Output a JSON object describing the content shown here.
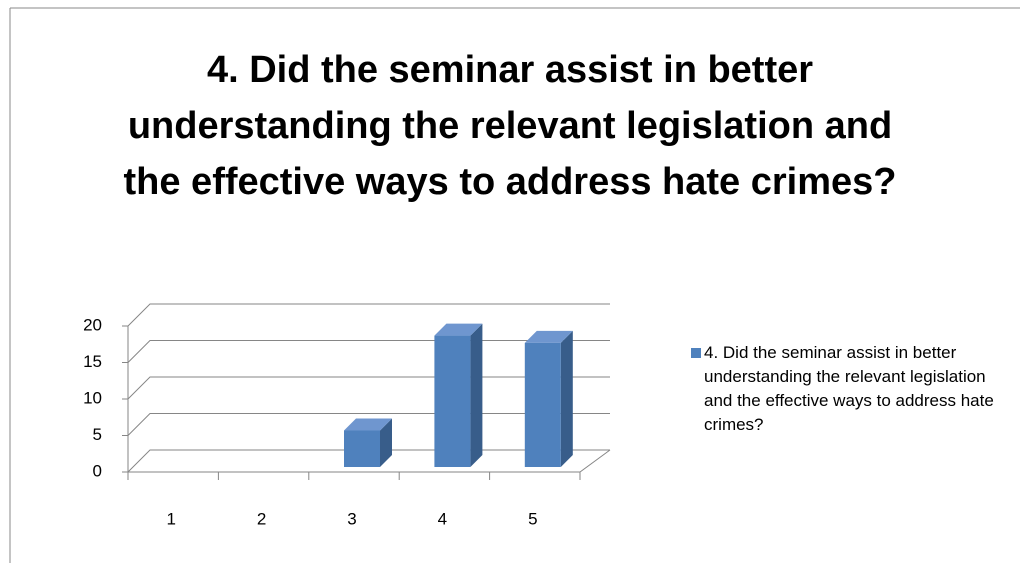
{
  "chart_data": {
    "type": "bar3d",
    "title": "4. Did the seminar assist in better understanding the relevant legislation and the effective ways to address hate crimes?",
    "categories": [
      "1",
      "2",
      "3",
      "4",
      "5"
    ],
    "series": [
      {
        "name": "4. Did the seminar assist in better understanding the relevant legislation and the effective ways to address hate crimes?",
        "color": "#4f81bd",
        "values": [
          0,
          0,
          5,
          18,
          17
        ]
      }
    ],
    "ylim": [
      0,
      20
    ],
    "yticks": [
      0,
      5,
      10,
      15,
      20
    ],
    "grid": true,
    "legend": "right"
  }
}
